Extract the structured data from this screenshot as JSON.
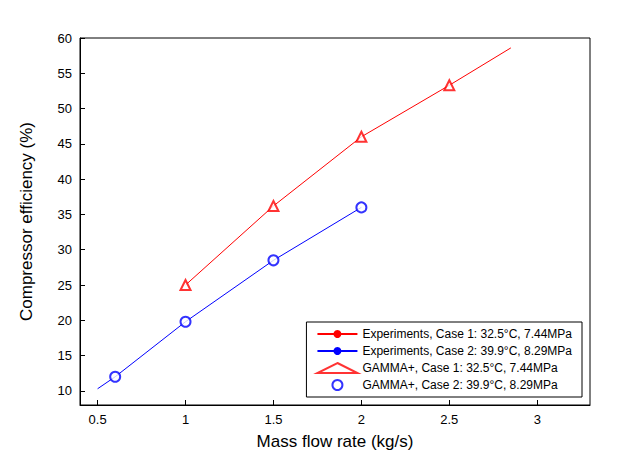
{
  "chart_data": {
    "type": "line",
    "x_label": "Mass flow rate (kg/s)",
    "y_label": "Compressor efficiency (%)",
    "xlim": [
      0.4,
      3.3
    ],
    "ylim": [
      8,
      60
    ],
    "xticks": [
      0.5,
      1,
      1.5,
      2,
      2.5,
      3
    ],
    "yticks": [
      10,
      15,
      20,
      25,
      30,
      35,
      40,
      45,
      50,
      55,
      60
    ],
    "grid": false,
    "legend": "lower right",
    "series": [
      {
        "name": "Experiments, Case 1: 32.5°C, 7.44MPa",
        "type": "line",
        "line_style": "solid",
        "color": "#ff0000",
        "x": [
          1,
          1.5,
          2,
          2.5,
          2.85
        ],
        "values": [
          25,
          36.2,
          46,
          53.3,
          58.6
        ]
      },
      {
        "name": "Experiments, Case 2: 39.9°C, 8.29MPa",
        "type": "line",
        "line_style": "solid",
        "color": "#0000ff",
        "x": [
          0.5,
          0.6,
          1,
          1.5,
          2
        ],
        "values": [
          10.3,
          12,
          19.8,
          28.5,
          36
        ]
      },
      {
        "name": "GAMMA+, Case 1: 32.5°C, 7.44MPa",
        "type": "scatter",
        "marker": "triangle",
        "color": "#ff0000",
        "x": [
          1,
          1.5,
          2,
          2.5
        ],
        "values": [
          25,
          36.2,
          46,
          53.3
        ]
      },
      {
        "name": "GAMMA+, Case 2: 39.9°C, 8.29MPa",
        "type": "scatter",
        "marker": "circle",
        "color": "#0000ff",
        "x": [
          0.6,
          1,
          1.5,
          2
        ],
        "values": [
          12,
          19.8,
          28.5,
          36
        ]
      }
    ]
  }
}
